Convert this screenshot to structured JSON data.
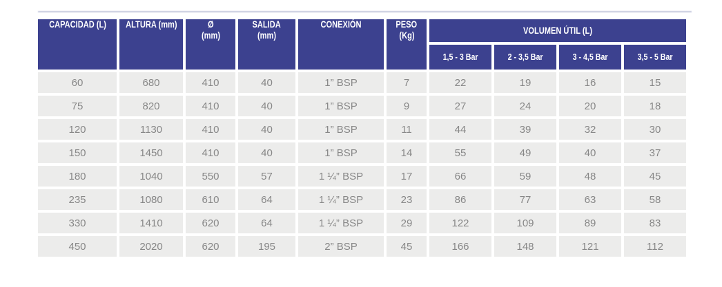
{
  "table": {
    "title_semantic": "tank specifications table",
    "header": {
      "capacity": "CAPACIDAD (L)",
      "height": "ALTURA (mm)",
      "diameter_symbol": "Ø",
      "diameter_unit": "(mm)",
      "outlet": "SALIDA",
      "outlet_unit": "(mm)",
      "connection": "CONEXIÓN",
      "weight": "PESO",
      "weight_unit": "(Kg)",
      "useful_volume_group": "VOLUMEN ÚTIL (L)",
      "pressure_ranges": [
        "1,5 - 3 Bar",
        "2 - 3,5 Bar",
        "3 - 4,5 Bar",
        "3,5 - 5 Bar"
      ]
    },
    "rows": [
      [
        "60",
        "680",
        "410",
        "40",
        "1” BSP",
        "7",
        "22",
        "19",
        "16",
        "15"
      ],
      [
        "75",
        "820",
        "410",
        "40",
        "1” BSP",
        "9",
        "27",
        "24",
        "20",
        "18"
      ],
      [
        "120",
        "1130",
        "410",
        "40",
        "1” BSP",
        "11",
        "44",
        "39",
        "32",
        "30"
      ],
      [
        "150",
        "1450",
        "410",
        "40",
        "1” BSP",
        "14",
        "55",
        "49",
        "40",
        "37"
      ],
      [
        "180",
        "1040",
        "550",
        "57",
        "1 ¼” BSP",
        "17",
        "66",
        "59",
        "48",
        "45"
      ],
      [
        "235",
        "1080",
        "610",
        "64",
        "1 ¼” BSP",
        "23",
        "86",
        "77",
        "63",
        "58"
      ],
      [
        "330",
        "1410",
        "620",
        "64",
        "1 ¼” BSP",
        "29",
        "122",
        "109",
        "89",
        "83"
      ],
      [
        "450",
        "2020",
        "620",
        "195",
        "2” BSP",
        "45",
        "166",
        "148",
        "121",
        "112"
      ]
    ],
    "colors": {
      "header_bg": "#3c418f",
      "header_text": "#ffffff",
      "row_bg": "#ececeb",
      "data_text": "#878787"
    }
  }
}
